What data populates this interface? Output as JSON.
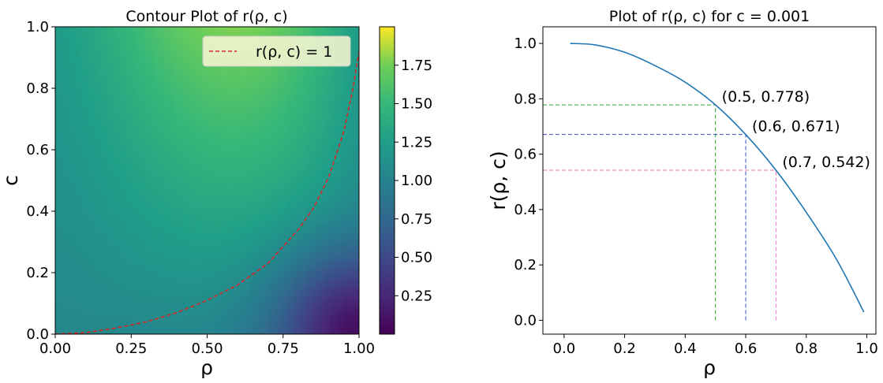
{
  "chart_data": [
    {
      "type": "heatmap",
      "title": "Contour Plot of r(ρ, c)",
      "xlabel": "ρ",
      "ylabel": "c",
      "xlim": [
        0,
        1
      ],
      "ylim": [
        0,
        1
      ],
      "x_ticks": [
        "0.00",
        "0.25",
        "0.50",
        "0.75",
        "1.00"
      ],
      "y_ticks": [
        "0.0",
        "0.2",
        "0.4",
        "0.6",
        "0.8",
        "1.0"
      ],
      "colormap": "viridis",
      "colorbar": {
        "range": [
          0,
          2
        ],
        "ticks": [
          "0.25",
          "0.50",
          "0.75",
          "1.00",
          "1.25",
          "1.50",
          "1.75"
        ]
      },
      "contour": {
        "name": "r(ρ, c) = 1",
        "color": "#d62728",
        "style": "dashed",
        "points": [
          [
            0,
            0
          ],
          [
            0.1,
            0.005
          ],
          [
            0.2,
            0.02
          ],
          [
            0.3,
            0.04
          ],
          [
            0.4,
            0.07
          ],
          [
            0.5,
            0.11
          ],
          [
            0.6,
            0.16
          ],
          [
            0.7,
            0.23
          ],
          [
            0.8,
            0.34
          ],
          [
            0.85,
            0.41
          ],
          [
            0.9,
            0.51
          ],
          [
            0.95,
            0.66
          ],
          [
            0.98,
            0.8
          ],
          [
            1.0,
            0.92
          ]
        ]
      },
      "legend": {
        "position": "top-right",
        "entries": [
          "r(ρ, c) = 1"
        ]
      },
      "grid": false
    },
    {
      "type": "line",
      "title": "Plot of r(ρ, c) for c = 0.001",
      "xlabel": "ρ",
      "ylabel": "r(ρ, c)",
      "xlim": [
        -0.07,
        1.03
      ],
      "ylim": [
        -0.05,
        1.06
      ],
      "x_ticks": [
        "0.0",
        "0.2",
        "0.4",
        "0.6",
        "0.8",
        "1.0"
      ],
      "y_ticks": [
        "0.0",
        "0.2",
        "0.4",
        "0.6",
        "0.8",
        "1.0"
      ],
      "series": [
        {
          "color": "#1f77b4",
          "x": [
            0.02,
            0.1,
            0.2,
            0.3,
            0.4,
            0.5,
            0.6,
            0.7,
            0.8,
            0.9,
            0.99
          ],
          "y": [
            1.0,
            0.995,
            0.968,
            0.92,
            0.86,
            0.778,
            0.671,
            0.542,
            0.39,
            0.22,
            0.03
          ]
        }
      ],
      "annotations": [
        {
          "x": 0.5,
          "y": 0.778,
          "label": "(0.5, 0.778)",
          "color": "#2ca02c"
        },
        {
          "x": 0.6,
          "y": 0.671,
          "label": "(0.6, 0.671)",
          "color": "#3b4cc0"
        },
        {
          "x": 0.7,
          "y": 0.542,
          "label": "(0.7, 0.542)",
          "color": "#e377c2"
        }
      ],
      "grid": false
    }
  ]
}
